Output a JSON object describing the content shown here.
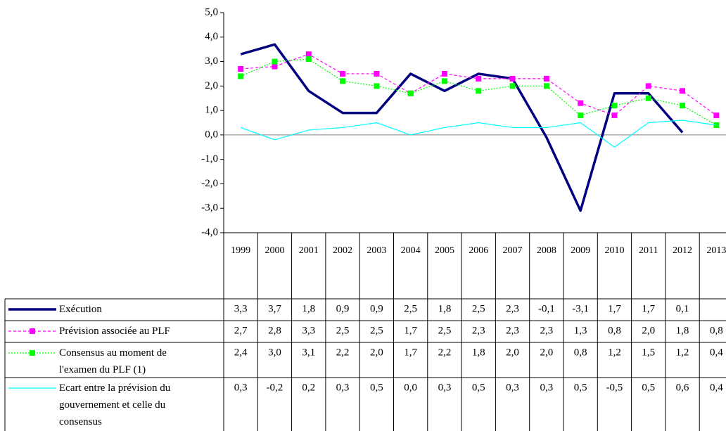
{
  "chart_data": {
    "type": "line",
    "categories": [
      "1999",
      "2000",
      "2001",
      "2002",
      "2003",
      "2004",
      "2005",
      "2006",
      "2007",
      "2008",
      "2009",
      "2010",
      "2011",
      "2012",
      "2013"
    ],
    "ylim": [
      -4,
      5
    ],
    "yticks": [
      {
        "value": 5,
        "label": "5,0"
      },
      {
        "value": 4,
        "label": "4,0"
      },
      {
        "value": 3,
        "label": "3,0"
      },
      {
        "value": 2,
        "label": "2,0"
      },
      {
        "value": 1,
        "label": "1,0"
      },
      {
        "value": 0,
        "label": "0,0"
      },
      {
        "value": -1,
        "label": "-1,0"
      },
      {
        "value": -2,
        "label": "-2,0"
      },
      {
        "value": -3,
        "label": "-3,0"
      },
      {
        "value": -4,
        "label": "-4,0"
      }
    ],
    "zero_line": true,
    "data_table": true,
    "series": [
      {
        "name": "Exécution",
        "color": "#000080",
        "line_width": 3.5,
        "dash": "none",
        "marker": "none",
        "values": [
          3.3,
          3.7,
          1.8,
          0.9,
          0.9,
          2.5,
          1.8,
          2.5,
          2.3,
          -0.1,
          -3.1,
          1.7,
          1.7,
          0.1,
          null
        ],
        "value_labels": [
          "3,3",
          "3,7",
          "1,8",
          "0,9",
          "0,9",
          "2,5",
          "1,8",
          "2,5",
          "2,3",
          "-0,1",
          "-3,1",
          "1,7",
          "1,7",
          "0,1",
          null
        ]
      },
      {
        "name": "Prévision associée au PLF",
        "color": "#FF00FF",
        "line_width": 1.2,
        "dash": "4 3",
        "marker": "square",
        "values": [
          2.7,
          2.8,
          3.3,
          2.5,
          2.5,
          1.7,
          2.5,
          2.3,
          2.3,
          2.3,
          1.3,
          0.8,
          2.0,
          1.8,
          0.8
        ],
        "value_labels": [
          "2,7",
          "2,8",
          "3,3",
          "2,5",
          "2,5",
          "1,7",
          "2,5",
          "2,3",
          "2,3",
          "2,3",
          "1,3",
          "0,8",
          "2,0",
          "1,8",
          "0,8"
        ]
      },
      {
        "name": "Consensus au moment de l'examen du PLF (1)",
        "color": "#00FF00",
        "line_width": 1.2,
        "dash": "2 2",
        "marker": "square",
        "values": [
          2.4,
          3.0,
          3.1,
          2.2,
          2.0,
          1.7,
          2.2,
          1.8,
          2.0,
          2.0,
          0.8,
          1.2,
          1.5,
          1.2,
          0.4
        ],
        "value_labels": [
          "2,4",
          "3,0",
          "3,1",
          "2,2",
          "2,0",
          "1,7",
          "2,2",
          "1,8",
          "2,0",
          "2,0",
          "0,8",
          "1,2",
          "1,5",
          "1,2",
          "0,4"
        ]
      },
      {
        "name": "Ecart entre la prévision du gouvernement et celle du consensus",
        "color": "#00FFFF",
        "line_width": 1.2,
        "dash": "none",
        "marker": "none",
        "values": [
          0.3,
          -0.2,
          0.2,
          0.3,
          0.5,
          0.0,
          0.3,
          0.5,
          0.3,
          0.3,
          0.5,
          -0.5,
          0.5,
          0.6,
          0.4
        ],
        "value_labels": [
          "0,3",
          "-0,2",
          "0,2",
          "0,3",
          "0,5",
          "0,0",
          "0,3",
          "0,5",
          "0,3",
          "0,3",
          "0,5",
          "-0,5",
          "0,5",
          "0,6",
          "0,4"
        ]
      }
    ]
  }
}
